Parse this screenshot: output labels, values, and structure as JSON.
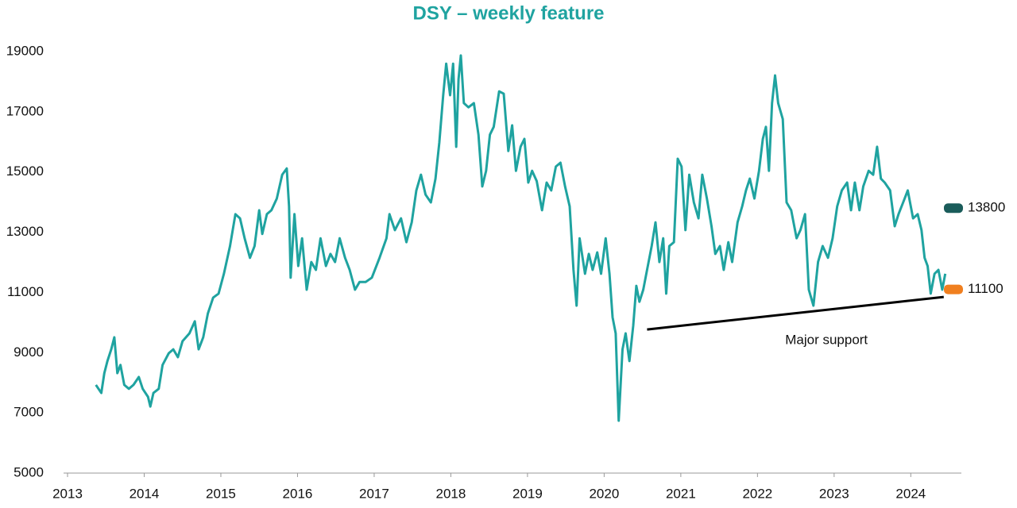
{
  "chart_data": {
    "type": "line",
    "title": "DSY – weekly feature",
    "x": [
      2013.37,
      2013.44,
      2013.48,
      2013.52,
      2013.57,
      2013.61,
      2013.65,
      2013.69,
      2013.74,
      2013.8,
      2013.86,
      2013.93,
      2013.98,
      2014.05,
      2014.08,
      2014.12,
      2014.19,
      2014.24,
      2014.32,
      2014.38,
      2014.44,
      2014.5,
      2014.59,
      2014.66,
      2014.71,
      2014.77,
      2014.83,
      2014.9,
      2014.97,
      2015.04,
      2015.12,
      2015.19,
      2015.25,
      2015.31,
      2015.38,
      2015.44,
      2015.5,
      2015.54,
      2015.6,
      2015.66,
      2015.73,
      2015.8,
      2015.86,
      2015.89,
      2015.91,
      2015.96,
      2016.01,
      2016.06,
      2016.12,
      2016.18,
      2016.24,
      2016.3,
      2016.37,
      2016.43,
      2016.49,
      2016.55,
      2016.62,
      2016.68,
      2016.75,
      2016.81,
      2016.89,
      2016.97,
      2017.07,
      2017.16,
      2017.2,
      2017.27,
      2017.35,
      2017.42,
      2017.49,
      2017.55,
      2017.61,
      2017.67,
      2017.74,
      2017.8,
      2017.85,
      2017.9,
      2017.94,
      2017.99,
      2018.03,
      2018.07,
      2018.1,
      2018.13,
      2018.17,
      2018.23,
      2018.3,
      2018.36,
      2018.41,
      2018.46,
      2018.51,
      2018.56,
      2018.63,
      2018.69,
      2018.75,
      2018.8,
      2018.85,
      2018.91,
      2018.96,
      2019.01,
      2019.06,
      2019.12,
      2019.19,
      2019.25,
      2019.31,
      2019.37,
      2019.43,
      2019.49,
      2019.55,
      2019.6,
      2019.64,
      2019.68,
      2019.75,
      2019.8,
      2019.85,
      2019.91,
      2019.96,
      2020.02,
      2020.07,
      2020.11,
      2020.15,
      2020.19,
      2020.24,
      2020.28,
      2020.33,
      2020.38,
      2020.42,
      2020.46,
      2020.51,
      2020.56,
      2020.62,
      2020.67,
      2020.72,
      2020.77,
      2020.81,
      2020.85,
      2020.91,
      2020.96,
      2021.01,
      2021.06,
      2021.11,
      2021.17,
      2021.23,
      2021.28,
      2021.34,
      2021.4,
      2021.45,
      2021.51,
      2021.56,
      2021.62,
      2021.67,
      2021.74,
      2021.8,
      2021.85,
      2021.9,
      2021.96,
      2022.02,
      2022.07,
      2022.11,
      2022.15,
      2022.19,
      2022.23,
      2022.27,
      2022.33,
      2022.38,
      2022.44,
      2022.51,
      2022.56,
      2022.62,
      2022.67,
      2022.73,
      2022.79,
      2022.85,
      2022.92,
      2022.98,
      2023.04,
      2023.1,
      2023.17,
      2023.22,
      2023.27,
      2023.33,
      2023.38,
      2023.45,
      2023.51,
      2023.56,
      2023.61,
      2023.66,
      2023.73,
      2023.79,
      2023.84,
      2023.9,
      2023.96,
      2024.03,
      2024.09,
      2024.14,
      2024.18,
      2024.22,
      2024.26,
      2024.31,
      2024.36,
      2024.41,
      2024.45
    ],
    "series": [
      {
        "name": "DSY",
        "color": "#1fa3a0",
        "values": [
          7930,
          7660,
          8320,
          8720,
          9110,
          9510,
          8320,
          8590,
          7930,
          7800,
          7930,
          8190,
          7800,
          7530,
          7210,
          7660,
          7800,
          8590,
          8980,
          9110,
          8850,
          9380,
          9640,
          10040,
          9110,
          9510,
          10300,
          10830,
          10960,
          11620,
          12540,
          13600,
          13460,
          12800,
          12150,
          12540,
          13730,
          12940,
          13600,
          13730,
          14120,
          14910,
          15120,
          13860,
          11490,
          13600,
          11880,
          12800,
          11090,
          12010,
          11750,
          12800,
          11880,
          12280,
          12010,
          12800,
          12150,
          11750,
          11090,
          11350,
          11350,
          11490,
          12150,
          12800,
          13600,
          13070,
          13460,
          12670,
          13330,
          14390,
          14910,
          14250,
          13990,
          14780,
          15970,
          17550,
          18600,
          17550,
          18600,
          15840,
          18080,
          18870,
          17290,
          17150,
          17290,
          16240,
          14520,
          15040,
          16240,
          16500,
          17680,
          17600,
          15700,
          16550,
          15040,
          15840,
          16100,
          14650,
          15040,
          14700,
          13730,
          14650,
          14390,
          15180,
          15310,
          14520,
          13860,
          11750,
          10560,
          12800,
          11620,
          12280,
          11750,
          12330,
          11620,
          12800,
          11620,
          10170,
          9640,
          6740,
          9110,
          9640,
          8720,
          9900,
          11220,
          10690,
          11090,
          11750,
          12540,
          13330,
          12010,
          12800,
          10960,
          12540,
          12670,
          15440,
          15180,
          13070,
          14910,
          13990,
          13460,
          14910,
          14120,
          13200,
          12280,
          12540,
          11750,
          12670,
          12010,
          13330,
          13860,
          14390,
          14780,
          14120,
          15040,
          16100,
          16500,
          15040,
          17290,
          18210,
          17290,
          16760,
          13990,
          13730,
          12800,
          13070,
          13600,
          11090,
          10560,
          12010,
          12540,
          12150,
          12800,
          13860,
          14390,
          14650,
          13730,
          14650,
          13730,
          14520,
          15040,
          14910,
          15840,
          14780,
          14650,
          14390,
          13200,
          13600,
          13990,
          14390,
          13460,
          13600,
          13070,
          12150,
          11880,
          10960,
          11620,
          11750,
          11090,
          11620
        ]
      }
    ],
    "xlim": [
      2013,
      2024.66
    ],
    "ylim": [
      5000,
      19000
    ],
    "xticks": [
      2013,
      2014,
      2015,
      2016,
      2017,
      2018,
      2019,
      2020,
      2021,
      2022,
      2023,
      2024
    ],
    "yticks": [
      5000,
      7000,
      9000,
      11000,
      13000,
      15000,
      17000,
      19000
    ],
    "support": {
      "x": [
        2020.56,
        2024.43
      ],
      "values": [
        9770,
        10850
      ],
      "label": "Major support",
      "label_x": 2022.9,
      "label_y": 9400
    },
    "levels": [
      {
        "value": 13800,
        "color": "#1a5c5a"
      },
      {
        "value": 11100,
        "color": "#f07f1f"
      }
    ]
  }
}
